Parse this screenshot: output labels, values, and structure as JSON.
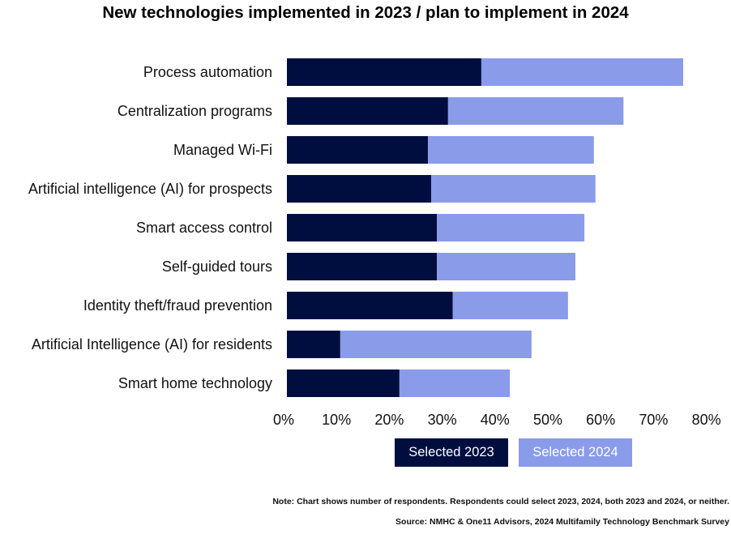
{
  "chart_data": {
    "type": "bar",
    "orientation": "horizontal",
    "stacked": true,
    "title": "New technologies implemented in 2023 / plan to implement in 2024",
    "categories": [
      "Process automation",
      "Centralization programs",
      "Managed Wi-Fi",
      "Artificial intelligence (AI) for prospects",
      "Smart access control",
      "Self-guided tours",
      "Identity theft/fraud prevention",
      "Artificial Intelligence (AI) for residents",
      "Smart home technology"
    ],
    "series": [
      {
        "name": "Selected 2023",
        "color": "#000e3f",
        "values": [
          36.8,
          30.5,
          26.7,
          27.3,
          28.4,
          28.4,
          31.4,
          10.1,
          21.3
        ]
      },
      {
        "name": "Selected 2024",
        "color": "#8a9bea",
        "values": [
          38.2,
          33.2,
          31.4,
          31.1,
          27.9,
          26.2,
          21.8,
          36.2,
          20.9
        ]
      }
    ],
    "xlim": [
      0,
      80
    ],
    "xticks": [
      "0%",
      "10%",
      "20%",
      "30%",
      "40%",
      "50%",
      "60%",
      "70%",
      "80%"
    ],
    "legend": "bottom"
  },
  "notes": {
    "note": "Note: Chart shows number of respondents. Respondents could select 2023, 2024, both 2023 and 2024, or neither.",
    "source": "Source:  NMHC & One11 Advisors, 2024 Multifamily Technology Benchmark Survey"
  }
}
